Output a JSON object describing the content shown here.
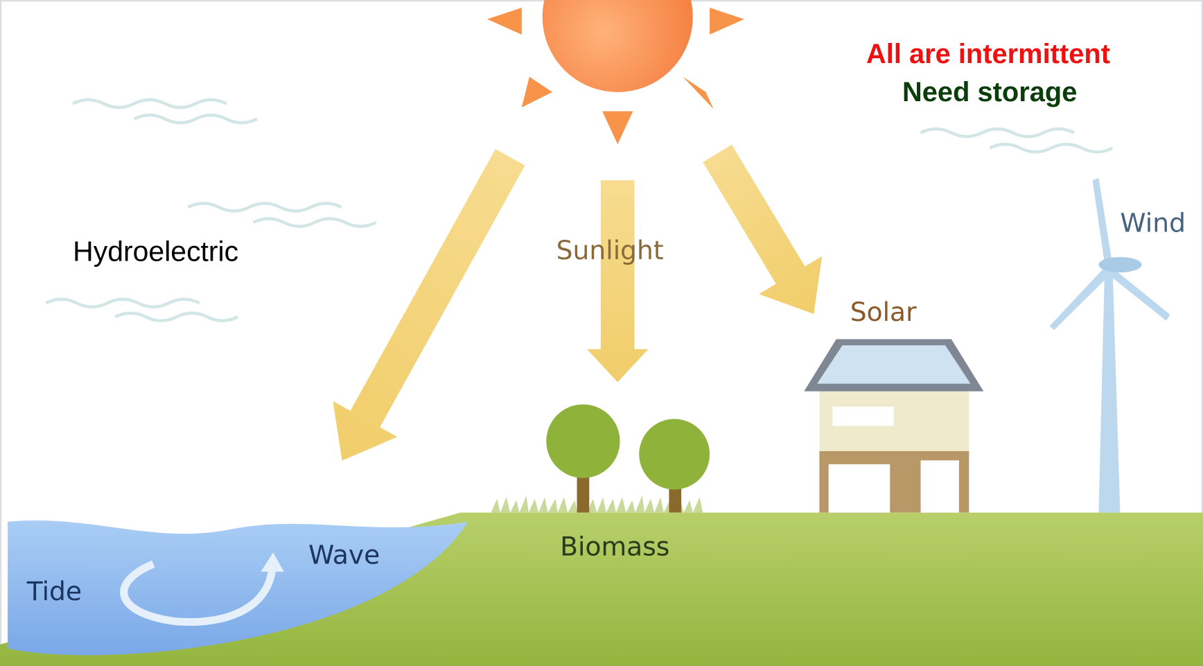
{
  "notes": {
    "intermittent": "All are intermittent",
    "storage": "Need storage"
  },
  "labels": {
    "hydroelectric": "Hydroelectric",
    "sunlight": "Sunlight",
    "solar": "Solar",
    "wind": "Wind",
    "wave": "Wave",
    "tide": "Tide",
    "biomass": "Biomass"
  }
}
